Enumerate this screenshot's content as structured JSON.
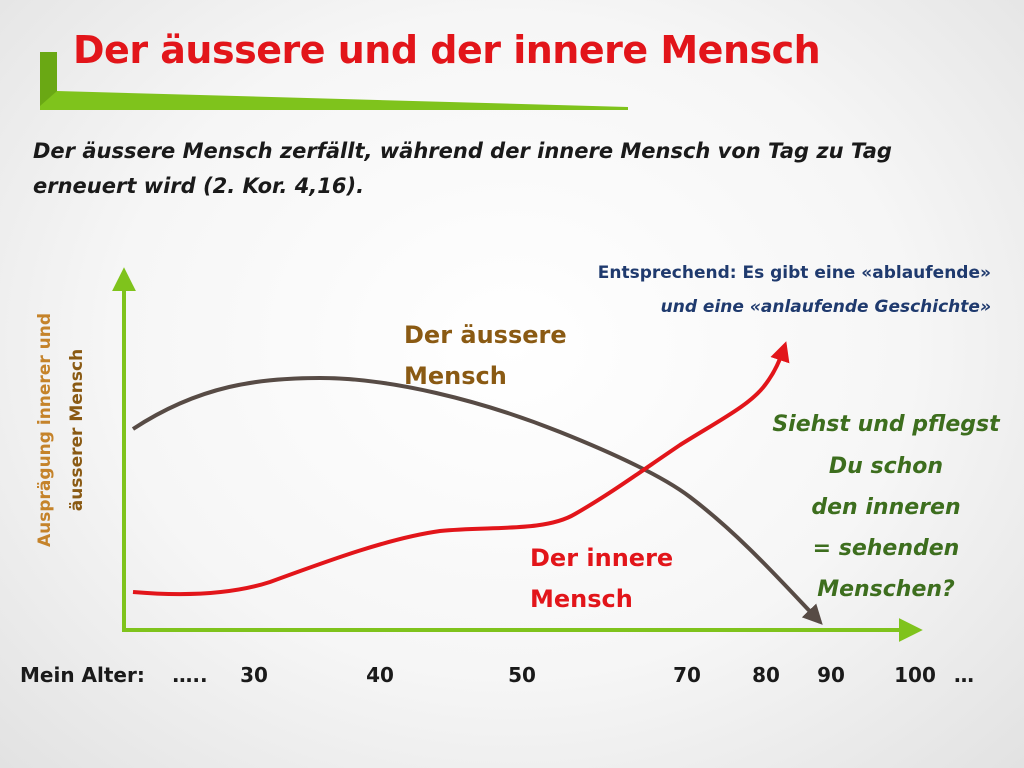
{
  "title": "Der äussere und der innere Mensch",
  "subtitle": "Der äussere Mensch zerfällt, während der innere Mensch von Tag zu Tag erneuert wird (2. Kor. 4,16).",
  "note_line1": "Entsprechend: Es gibt eine «ablaufende»",
  "note_line2": "und eine «anlaufende Geschichte»",
  "colors": {
    "title": "#e2151a",
    "accent_green": "#7fc31c",
    "outer_curve": "#574b45",
    "inner_curve": "#e2151a",
    "outer_label": "#8a5a13",
    "question": "#3d6e1e",
    "note": "#1f3a6e"
  },
  "chart_data": {
    "type": "line",
    "ylabel_lines": [
      "Ausprägung innerer und",
      "äusserer Mensch"
    ],
    "xlabel_prefix": "Mein Alter:",
    "x_ticks": [
      "…..",
      "30",
      "40",
      "50",
      "70",
      "80",
      "90",
      "100",
      "…"
    ],
    "series": [
      {
        "name": "Der äussere Mensch",
        "label_lines": [
          "Der äussere",
          "Mensch"
        ]
      },
      {
        "name": "Der innere Mensch",
        "label_lines": [
          "Der innere",
          "Mensch"
        ]
      }
    ],
    "annotation_lines": [
      "Siehst und pflegst",
      "Du schon",
      "den inneren",
      "= sehenden",
      "Menschen?"
    ]
  }
}
